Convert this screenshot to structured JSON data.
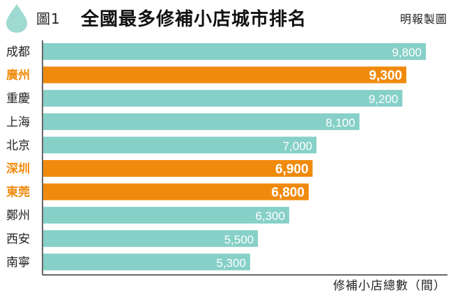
{
  "header": {
    "figure_label": "圖1",
    "title": "全國最多修補小店城市排名",
    "credit": "明報製圖"
  },
  "colors": {
    "normal_bar": "#86d0c8",
    "highlight_bar": "#f08a0c",
    "normal_label_text": "#222222",
    "highlight_label_text": "#f08a0c",
    "axis": "#333333",
    "drop": "#9ed9d2"
  },
  "chart_data": {
    "type": "bar",
    "orientation": "horizontal",
    "categories": [
      "成都",
      "廣州",
      "重慶",
      "上海",
      "北京",
      "深圳",
      "東莞",
      "鄭州",
      "西安",
      "南寧"
    ],
    "values": [
      9800,
      9300,
      9200,
      8100,
      7000,
      6900,
      6800,
      6300,
      5500,
      5300
    ],
    "value_labels": [
      "9,800",
      "9,300",
      "9,200",
      "8,100",
      "7,000",
      "6,900",
      "6,800",
      "6,300",
      "5,500",
      "5,300"
    ],
    "highlighted": [
      false,
      true,
      false,
      false,
      false,
      true,
      true,
      false,
      false,
      false
    ],
    "title": "全國最多修補小店城市排名",
    "xlabel": "修補小店總數（間）",
    "ylabel": "",
    "xlim": [
      0,
      9800
    ],
    "grid": false
  }
}
